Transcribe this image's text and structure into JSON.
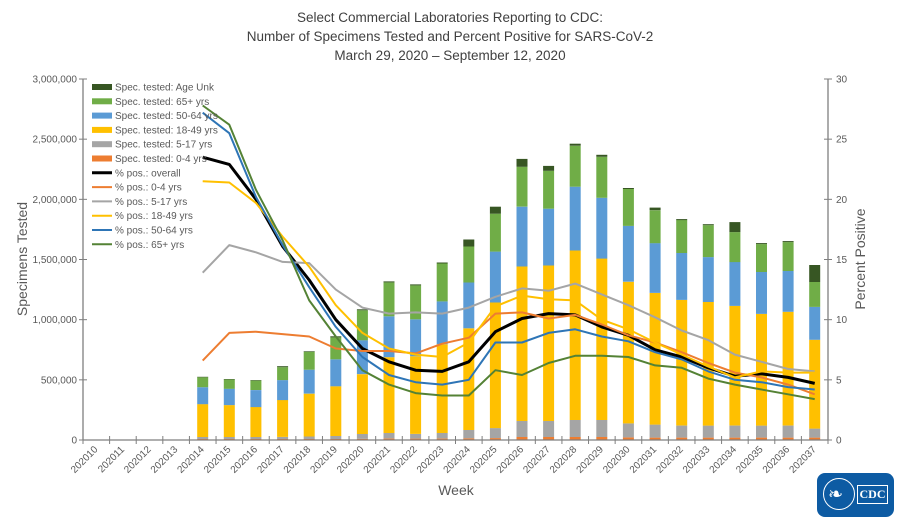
{
  "title": {
    "line1": "Select Commercial Laboratories Reporting to CDC:",
    "line2": "Number of Specimens Tested and Percent Positive for SARS-CoV-2",
    "line3": "March 29, 2020 – September 12, 2020"
  },
  "logo": {
    "text": "CDC",
    "icon": "hhs-eagle-icon"
  },
  "chart_data": {
    "type": "bar+line",
    "title": "Select Commercial Laboratories Reporting to CDC: Number of Specimens Tested and Percent Positive for SARS-CoV-2, March 29, 2020 – September 12, 2020",
    "xlabel": "Week",
    "ylabel": "Specimens Tested",
    "y2label": "Percent Positive",
    "ylim": [
      0,
      3000000
    ],
    "y2lim": [
      0,
      30
    ],
    "yticks": [
      "0",
      "500,000",
      "1,000,000",
      "1,500,000",
      "2,000,000",
      "2,500,000",
      "3,000,000"
    ],
    "y2ticks": [
      "0",
      "5",
      "10",
      "15",
      "20",
      "25",
      "30"
    ],
    "grid": false,
    "legend_position": "top-left",
    "categories": [
      "202010",
      "202011",
      "202012",
      "202013",
      "202014",
      "202015",
      "202016",
      "202017",
      "202018",
      "202019",
      "202020",
      "202021",
      "202022",
      "202023",
      "202024",
      "202025",
      "202026",
      "202027",
      "202028",
      "202029",
      "202030",
      "202031",
      "202032",
      "202033",
      "202034",
      "202035",
      "202036",
      "202037"
    ],
    "bar_series": [
      {
        "name": "Spec. tested: 0-4 yrs",
        "color": "#ed7d31",
        "values": [
          0,
          0,
          0,
          0,
          8000,
          8000,
          8000,
          8000,
          8000,
          8000,
          10000,
          12000,
          12000,
          12000,
          14000,
          16000,
          25000,
          25000,
          25000,
          25000,
          22000,
          20000,
          20000,
          20000,
          20000,
          20000,
          20000,
          20000
        ]
      },
      {
        "name": "Spec. tested: 5-17 yrs",
        "color": "#a5a5a5",
        "values": [
          0,
          0,
          0,
          0,
          17000,
          17000,
          17000,
          17000,
          21000,
          25000,
          40000,
          46000,
          38000,
          46000,
          69000,
          83000,
          133000,
          133000,
          141000,
          141000,
          116000,
          108000,
          100000,
          100000,
          100000,
          100000,
          100000,
          75000
        ]
      },
      {
        "name": "Spec. tested: 18-49 yrs",
        "color": "#ffc000",
        "values": [
          0,
          0,
          0,
          0,
          273000,
          265000,
          249000,
          307000,
          356000,
          414000,
          497000,
          630000,
          646000,
          738000,
          845000,
          1044000,
          1284000,
          1292000,
          1409000,
          1342000,
          1177000,
          1094000,
          1044000,
          1027000,
          994000,
          928000,
          945000,
          738000
        ]
      },
      {
        "name": "Spec. tested: 50-64 yrs",
        "color": "#5b9bd5",
        "values": [
          0,
          0,
          0,
          0,
          141000,
          136000,
          141000,
          166000,
          199000,
          224000,
          282000,
          340000,
          307000,
          356000,
          381000,
          423000,
          497000,
          472000,
          530000,
          505000,
          464000,
          414000,
          390000,
          373000,
          365000,
          348000,
          340000,
          273000
        ]
      },
      {
        "name": "Spec. tested: 65+ yrs",
        "color": "#70ad47",
        "values": [
          0,
          0,
          0,
          0,
          83000,
          77000,
          80000,
          107000,
          149000,
          182000,
          249000,
          282000,
          282000,
          315000,
          299000,
          315000,
          331000,
          315000,
          340000,
          340000,
          307000,
          273000,
          274000,
          265000,
          249000,
          232000,
          240000,
          207000
        ]
      },
      {
        "name": "Spec. tested: Age Unk",
        "color": "#375623",
        "values": [
          0,
          0,
          0,
          0,
          3000,
          3000,
          2000,
          8000,
          5000,
          9000,
          8000,
          8000,
          8000,
          8000,
          58000,
          58000,
          66000,
          41000,
          17000,
          17000,
          8000,
          22000,
          8000,
          8000,
          83000,
          8000,
          8000,
          141000
        ]
      }
    ],
    "line_series": [
      {
        "name": "% pos.: overall",
        "color": "#000000",
        "width": 3,
        "values": [
          null,
          null,
          null,
          null,
          23.5,
          22.9,
          20.0,
          16.1,
          13.3,
          10.0,
          7.6,
          6.5,
          5.8,
          5.7,
          6.5,
          9.0,
          10.1,
          10.5,
          10.4,
          9.4,
          8.7,
          7.5,
          6.9,
          6.0,
          5.3,
          5.5,
          5.2,
          4.7
        ]
      },
      {
        "name": "% pos.: 0-4 yrs",
        "color": "#ed7d31",
        "width": 2,
        "values": [
          null,
          null,
          null,
          null,
          6.6,
          8.9,
          9.0,
          8.8,
          8.6,
          7.6,
          7.4,
          7.4,
          7.2,
          8.0,
          8.5,
          10.5,
          10.6,
          10.1,
          10.4,
          9.6,
          8.7,
          8.1,
          7.3,
          6.4,
          5.6,
          5.2,
          4.6,
          3.8
        ]
      },
      {
        "name": "% pos.: 5-17 yrs",
        "color": "#a5a5a5",
        "width": 2,
        "values": [
          null,
          null,
          null,
          null,
          13.9,
          16.2,
          15.6,
          14.8,
          14.7,
          12.5,
          11.0,
          10.5,
          10.6,
          10.5,
          11.0,
          11.9,
          12.6,
          12.4,
          13.0,
          12.1,
          11.2,
          10.2,
          9.1,
          8.3,
          7.1,
          6.5,
          5.9,
          5.7
        ]
      },
      {
        "name": "% pos.: 18-49 yrs",
        "color": "#ffc000",
        "width": 2,
        "values": [
          null,
          null,
          null,
          null,
          21.5,
          21.4,
          19.7,
          16.9,
          14.4,
          11.2,
          8.9,
          7.6,
          7.1,
          6.9,
          8.1,
          11.1,
          12.0,
          11.7,
          11.6,
          10.0,
          9.2,
          8.1,
          7.1,
          6.1,
          5.2,
          5.7,
          5.6,
          5.6
        ]
      },
      {
        "name": "% pos.: 50-64 yrs",
        "color": "#2e75b6",
        "width": 2,
        "values": [
          null,
          null,
          null,
          null,
          27.2,
          25.5,
          20.2,
          16.2,
          12.7,
          9.4,
          6.9,
          5.4,
          4.8,
          4.6,
          5.0,
          8.1,
          8.1,
          8.9,
          9.2,
          8.6,
          8.2,
          7.3,
          6.7,
          5.7,
          5.0,
          4.8,
          4.4,
          4.2
        ]
      },
      {
        "name": "% pos.: 65+ yrs",
        "color": "#548235",
        "width": 2,
        "values": [
          null,
          null,
          null,
          null,
          27.8,
          26.2,
          20.8,
          16.6,
          11.6,
          8.6,
          5.8,
          4.6,
          3.9,
          3.7,
          3.7,
          5.8,
          5.4,
          6.4,
          7.0,
          7.0,
          6.9,
          6.2,
          6.0,
          5.1,
          4.6,
          4.2,
          3.8,
          3.4
        ]
      }
    ],
    "legend_order": [
      "Spec. tested: Age Unk",
      "Spec. tested: 65+ yrs",
      "Spec. tested: 50-64 yrs",
      "Spec. tested: 18-49 yrs",
      "Spec. tested: 5-17 yrs",
      "Spec. tested: 0-4 yrs",
      "% pos.: overall",
      "% pos.: 0-4 yrs",
      "% pos.: 5-17 yrs",
      "% pos.: 18-49 yrs",
      "% pos.: 50-64 yrs",
      "% pos.: 65+ yrs"
    ]
  }
}
